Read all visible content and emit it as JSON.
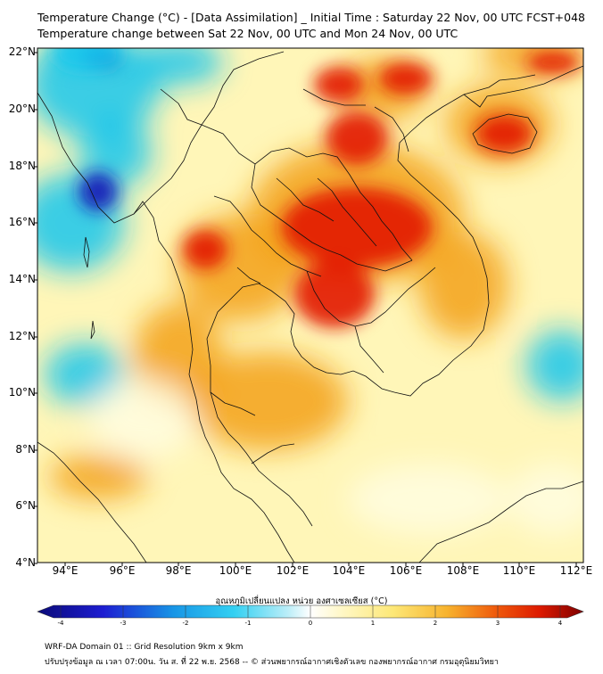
{
  "header": {
    "title_line1": "Temperature Change (°C) - [Data Assimilation] _ Initial Time : Saturday 22 Nov, 00 UTC FCST+048",
    "title_line2": "Temperature change between Sat 22 Nov, 00 UTC and Mon 24 Nov, 00 UTC"
  },
  "map": {
    "lat_labels": [
      "22°N",
      "20°N",
      "18°N",
      "16°N",
      "14°N",
      "12°N",
      "10°N",
      "8°N",
      "6°N",
      "4°N"
    ],
    "lon_labels": [
      "94°E",
      "96°E",
      "98°E",
      "100°E",
      "102°E",
      "104°E",
      "106°E",
      "108°E",
      "110°E",
      "112°E"
    ]
  },
  "colorbar": {
    "label": "อุณหภูมิเปลี่ยนแปลง หน่วย องศาเซลเซียส (°C)",
    "ticks": [
      "-4",
      "-3",
      "-2",
      "-1",
      "0",
      "1",
      "2",
      "3",
      "4"
    ]
  },
  "footer": {
    "line1": "WRF-DA Domain 01 :: Grid Resolution 9km x 9km",
    "line2": "ปรับปรุงข้อมูล ณ เวลา 07:00น. วัน ส. ที่ 22 พ.ย. 2568 -- © ส่วนพยากรณ์อากาศเชิงตัวเลข กองพยากรณ์อากาศ กรมอุตุนิยมวิทยา"
  },
  "colors": {
    "deep_cool": "#1515b5",
    "cool": "#18c6ec",
    "neutral": "#fffde0",
    "warm": "#f3a116",
    "hot": "#e21400",
    "coastline": "#000000"
  }
}
